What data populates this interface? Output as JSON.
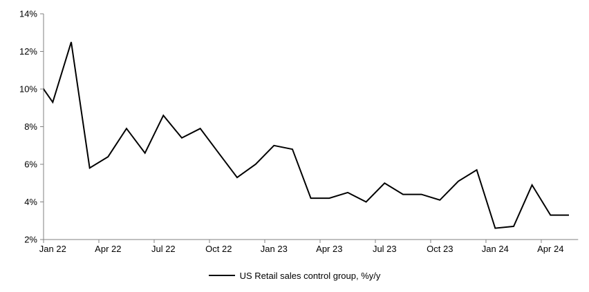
{
  "chart_data": {
    "type": "line",
    "title": "",
    "background_color": "#ffffff",
    "axis_color": "#808080",
    "text_color": "#000000",
    "grid": false,
    "legend_position": "bottom-center",
    "ylim": [
      2,
      14
    ],
    "y_ticks": [
      2,
      4,
      6,
      8,
      10,
      12,
      14
    ],
    "y_tick_suffix": "%",
    "x": [
      "Dec 21",
      "Jan 22",
      "Feb 22",
      "Mar 22",
      "Apr 22",
      "May 22",
      "Jun 22",
      "Jul 22",
      "Aug 22",
      "Sep 22",
      "Oct 22",
      "Nov 22",
      "Dec 22",
      "Jan 23",
      "Feb 23",
      "Mar 23",
      "Apr 23",
      "May 23",
      "Jun 23",
      "Jul 23",
      "Aug 23",
      "Sep 23",
      "Oct 23",
      "Nov 23",
      "Dec 23",
      "Jan 24",
      "Feb 24",
      "Mar 24",
      "Apr 24",
      "May 24"
    ],
    "first_point_clipped_at_left_edge": true,
    "x_tick_labels": [
      "Jan 22",
      "Apr 22",
      "Jul 22",
      "Oct 22",
      "Jan 23",
      "Apr 23",
      "Jul 23",
      "Oct 23",
      "Jan 24",
      "Apr 24"
    ],
    "x_tick_start_index": 1,
    "x_tick_step": 3,
    "series": [
      {
        "name": "US Retail sales control group, %y/y",
        "color": "#000000",
        "line_width": 2,
        "values": [
          10.7,
          9.3,
          12.5,
          5.8,
          6.4,
          7.9,
          6.6,
          8.6,
          7.4,
          7.9,
          6.6,
          5.3,
          6.0,
          7.0,
          6.8,
          4.2,
          4.2,
          4.5,
          4.0,
          5.0,
          4.4,
          4.4,
          4.1,
          5.1,
          5.7,
          2.6,
          2.7,
          4.9,
          3.3,
          3.3
        ]
      }
    ]
  }
}
